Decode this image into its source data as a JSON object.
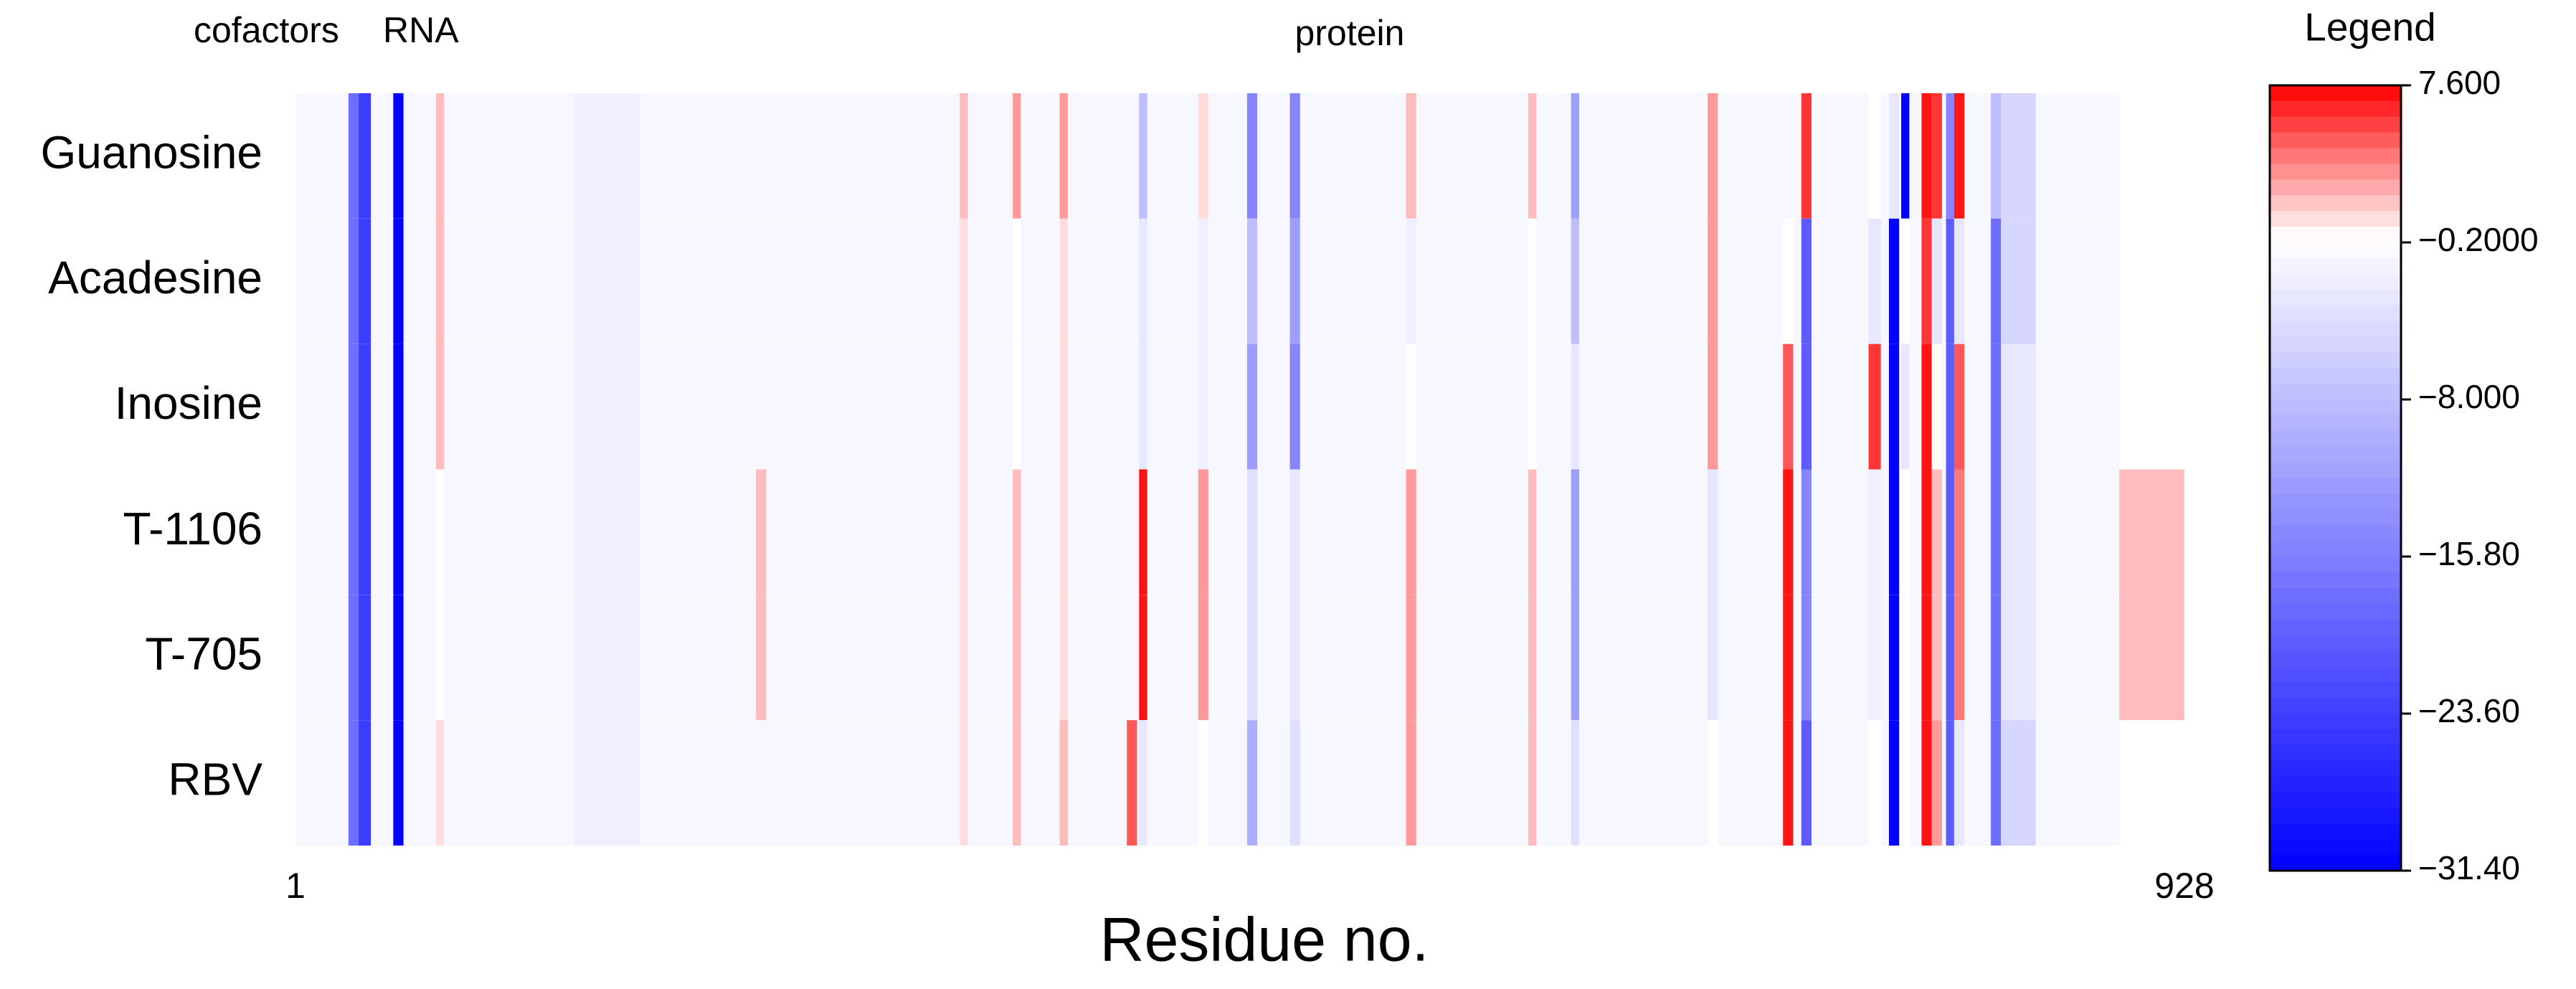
{
  "chart_data": {
    "type": "heatmap",
    "top_labels": [
      "cofactors",
      "RNA",
      "protein"
    ],
    "xlabel": "Residue no.",
    "xlim": [
      1,
      928
    ],
    "xticks": [
      1,
      928
    ],
    "legend_title": "Legend",
    "colormap": [
      "#0000ff",
      "#ffffff",
      "#ff0000"
    ],
    "zlim": [
      -31.4,
      7.6
    ],
    "zticks": [
      {
        "value": 7.6,
        "label": "7.600"
      },
      {
        "value": -0.2,
        "label": "−0.2000"
      },
      {
        "value": -8.0,
        "label": "−8.000"
      },
      {
        "value": -15.8,
        "label": "−15.80"
      },
      {
        "value": -23.6,
        "label": "−23.60"
      },
      {
        "value": -31.4,
        "label": "−31.40"
      }
    ],
    "x_start": [
      1,
      27,
      32,
      49,
      70,
      138,
      227,
      327,
      353,
      376,
      409,
      415,
      444,
      468,
      489,
      546,
      606,
      627,
      694,
      731,
      740,
      773,
      783,
      789,
      799,
      804,
      811,
      815,
      833,
      838,
      896
    ],
    "x_end": [
      928,
      32,
      38,
      54,
      74,
      170,
      232,
      331,
      357,
      380,
      414,
      419,
      449,
      473,
      494,
      551,
      610,
      631,
      699,
      736,
      745,
      779,
      788,
      793,
      804,
      809,
      815,
      820,
      838,
      855,
      928
    ],
    "series": [
      {
        "name": "Guanosine",
        "values": [
          -1,
          -18,
          -24,
          -31,
          2,
          -2,
          -1,
          2,
          3,
          3,
          -1,
          -8,
          1,
          -15,
          -15,
          2,
          2,
          -12,
          3,
          -1,
          6,
          0,
          -3,
          -31,
          7,
          6,
          -15,
          7,
          -8,
          -5,
          0
        ]
      },
      {
        "name": "Acadesine",
        "values": [
          -1,
          -18,
          -24,
          -31,
          2,
          -2,
          -1,
          1,
          0,
          1,
          -1,
          -3,
          -2,
          -8,
          -12,
          -2,
          0,
          -8,
          3,
          0,
          -20,
          -3,
          -31,
          0,
          6,
          -3,
          -20,
          -3,
          -18,
          -5,
          0
        ]
      },
      {
        "name": "Inosine",
        "values": [
          -1,
          -18,
          -24,
          -31,
          2,
          -2,
          -1,
          1,
          0,
          1,
          -1,
          -3,
          -2,
          -12,
          -15,
          0,
          0,
          -3,
          3,
          5,
          -20,
          6,
          -31,
          -3,
          7,
          0,
          -20,
          5,
          -18,
          -3,
          0
        ]
      },
      {
        "name": "T-1106",
        "values": [
          -1,
          -18,
          -24,
          -31,
          0,
          -2,
          2,
          1,
          2,
          1,
          -1,
          7,
          3,
          -4,
          -3,
          3,
          2,
          -12,
          -3,
          7,
          -15,
          -2,
          -31,
          0,
          7,
          2,
          -20,
          4,
          -18,
          -3,
          2
        ]
      },
      {
        "name": "T-705",
        "values": [
          -1,
          -18,
          -24,
          -31,
          0,
          -2,
          2,
          1,
          2,
          1,
          -1,
          7,
          3,
          -4,
          -3,
          3,
          2,
          -12,
          -3,
          7,
          -15,
          -2,
          -31,
          0,
          7,
          2,
          -20,
          4,
          -18,
          -3,
          2
        ]
      },
      {
        "name": "RBV",
        "values": [
          -1,
          -18,
          -24,
          -31,
          1,
          -2,
          -1,
          1,
          2,
          2,
          5,
          -3,
          0,
          -10,
          -4,
          3,
          2,
          -4,
          0,
          7,
          -20,
          0,
          -31,
          0,
          7,
          3,
          -20,
          -3,
          -18,
          -5,
          0
        ]
      }
    ]
  }
}
